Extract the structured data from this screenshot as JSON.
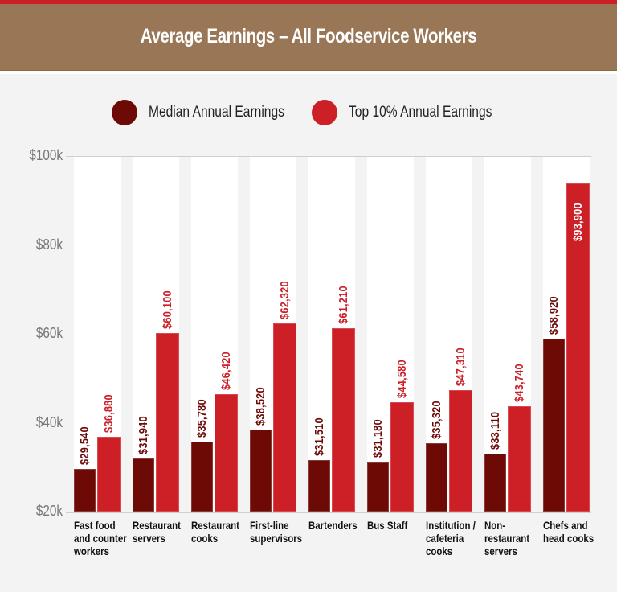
{
  "header": {
    "title": "Average Earnings – All Foodservice Workers"
  },
  "legend": [
    {
      "label": "Median Annual Earnings",
      "color": "#6e0a06"
    },
    {
      "label": "Top 10% Annual Earnings",
      "color": "#cc1f26"
    }
  ],
  "colors": {
    "top_strip": "#cc1f26",
    "title_band": "#987656",
    "median": "#6e0a06",
    "top10": "#cc1f26",
    "background": "#f3f3f3"
  },
  "chart_data": {
    "type": "bar",
    "title": "Average Earnings – All Foodservice Workers",
    "xlabel": "",
    "ylabel": "",
    "ylim": [
      20000,
      100000
    ],
    "yticks": [
      "$100k",
      "$80k",
      "$60k",
      "$40k",
      "$20k"
    ],
    "ytick_values": [
      100000,
      80000,
      60000,
      40000,
      20000
    ],
    "grid": false,
    "legend_position": "top",
    "categories": [
      "Fast food and counter workers",
      "Restaurant servers",
      "Restaurant cooks",
      "First-line supervisors",
      "Bartenders",
      "Bus Staff",
      "Institution / cafeteria cooks",
      "Non-restaurant servers",
      "Chefs and head cooks"
    ],
    "category_lines": [
      [
        "Fast food",
        "and counter",
        "workers"
      ],
      [
        "Restaurant",
        "servers"
      ],
      [
        "Restaurant",
        "cooks"
      ],
      [
        "First-line",
        "supervisors"
      ],
      [
        "Bartenders"
      ],
      [
        "Bus Staff"
      ],
      [
        "Institution /",
        "cafeteria",
        "cooks"
      ],
      [
        "Non-",
        "restaurant",
        "servers"
      ],
      [
        "Chefs and",
        "head cooks"
      ]
    ],
    "series": [
      {
        "name": "Median Annual Earnings",
        "values": [
          29540,
          31940,
          35780,
          38520,
          31510,
          31180,
          35320,
          33110,
          58920
        ],
        "labels": [
          "$29,540",
          "$31,940",
          "$35,780",
          "$38,520",
          "$31,510",
          "$31,180",
          "$35,320",
          "$33,110",
          "$58,920"
        ]
      },
      {
        "name": "Top 10% Annual Earnings",
        "values": [
          36880,
          60100,
          46420,
          62320,
          61210,
          44580,
          47310,
          43740,
          93900
        ],
        "labels": [
          "$36,880",
          "$60,100",
          "$46,420",
          "$62,320",
          "$61,210",
          "$44,580",
          "$47,310",
          "$43,740",
          "$93,900"
        ]
      }
    ]
  }
}
